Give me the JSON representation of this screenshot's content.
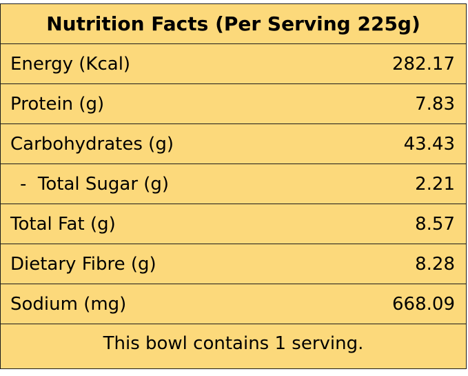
{
  "title": "Nutrition Facts (Per Serving 225g)",
  "rows": [
    {
      "label": "Energy (Kcal)",
      "value": "282.17"
    },
    {
      "label": "Protein (g)",
      "value": "7.83"
    },
    {
      "label": "Carbohydrates (g)",
      "value": "43.43"
    },
    {
      "label": "-  Total Sugar (g)",
      "value": "2.21"
    },
    {
      "label": "Total Fat (g)",
      "value": "8.57"
    },
    {
      "label": "Dietary Fibre (g)",
      "value": "8.28"
    },
    {
      "label": "Sodium (mg)",
      "value": "668.09"
    }
  ],
  "footer": "This bowl contains 1 serving.",
  "colors": {
    "background": "#FCD97B",
    "border": "#1a1a1a",
    "text": "#000000"
  }
}
